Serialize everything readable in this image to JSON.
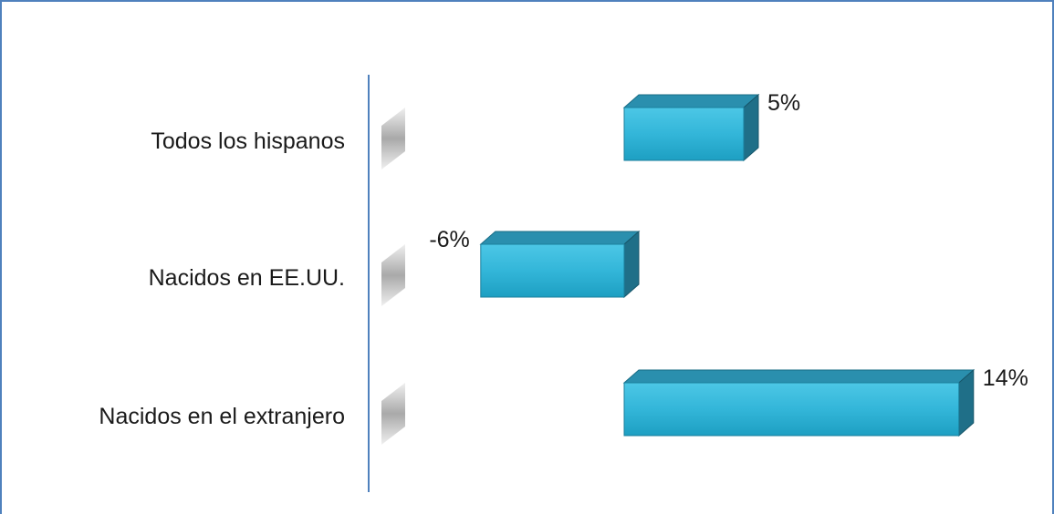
{
  "chart_data": {
    "type": "bar",
    "orientation": "horizontal",
    "categories": [
      "Todos los hispanos",
      "Nacidos en EE.UU.",
      "Nacidos en el extranjero"
    ],
    "values": [
      5,
      -6,
      14
    ],
    "value_labels": [
      "5%",
      "-6%",
      "14%"
    ],
    "unit": "%",
    "xlim": [
      -10,
      14
    ],
    "grid": false,
    "legend": "none",
    "colors": {
      "bar_front": "#33b6d9",
      "bar_top": "#2a8fae",
      "bar_side": "#1f6f88",
      "axis": "#4f81bd",
      "frame": "#4f81bd"
    }
  }
}
